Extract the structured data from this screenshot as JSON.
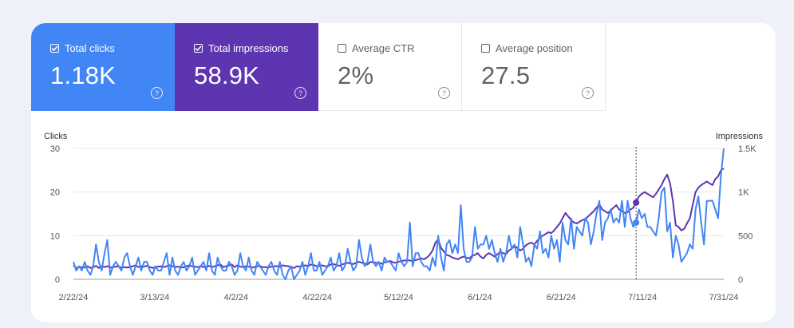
{
  "cards": [
    {
      "label": "Total clicks",
      "value": "1.18K",
      "checked": true
    },
    {
      "label": "Total impressions",
      "value": "58.9K",
      "checked": true
    },
    {
      "label": "Average CTR",
      "value": "2%",
      "checked": false
    },
    {
      "label": "Average position",
      "value": "27.5",
      "checked": false
    }
  ],
  "help_glyph": "?",
  "colors": {
    "clicks": "#4285f4",
    "impressions": "#5e35b1"
  },
  "chart_data": {
    "type": "line",
    "xlabel_ticks": [
      "2/22/24",
      "3/13/24",
      "4/2/24",
      "4/22/24",
      "5/12/24",
      "6/1/24",
      "6/21/24",
      "7/11/24",
      "7/31/24"
    ],
    "y_left": {
      "label": "Clicks",
      "ticks": [
        "0",
        "10",
        "20",
        "30"
      ],
      "range": [
        0,
        30
      ]
    },
    "y_right": {
      "label": "Impressions",
      "ticks": [
        "0",
        "500",
        "1K",
        "1.5K"
      ],
      "range": [
        0,
        1500
      ]
    },
    "grid": true,
    "hover_date": "7/14/24",
    "series": [
      {
        "name": "Total clicks",
        "axis": "left",
        "color": "#4285f4",
        "values": [
          4,
          2,
          3,
          2,
          4,
          2,
          1,
          3,
          8,
          4,
          2,
          6,
          9,
          1,
          3,
          4,
          3,
          2,
          5,
          6,
          3,
          1,
          3,
          5,
          2,
          4,
          4,
          2,
          1,
          3,
          2,
          2,
          4,
          6,
          1,
          5,
          2,
          1,
          3,
          4,
          2,
          3,
          5,
          1,
          2,
          3,
          4,
          2,
          6,
          2,
          1,
          5,
          3,
          2,
          2,
          4,
          3,
          1,
          2,
          6,
          3,
          2,
          5,
          2,
          1,
          4,
          3,
          2,
          1,
          3,
          4,
          2,
          1,
          4,
          1,
          0,
          2,
          3,
          0,
          1,
          2,
          4,
          1,
          3,
          6,
          2,
          2,
          4,
          1,
          2,
          3,
          5,
          2,
          3,
          6,
          2,
          3,
          7,
          4,
          2,
          3,
          9,
          5,
          3,
          4,
          8,
          4,
          3,
          4,
          2,
          5,
          4,
          4,
          3,
          2,
          6,
          4,
          3,
          4,
          13,
          3,
          6,
          6,
          4,
          3,
          3,
          2,
          5,
          3,
          10,
          5,
          2,
          8,
          9,
          6,
          8,
          6,
          17,
          7,
          4,
          4,
          5,
          12,
          7,
          8,
          8,
          10,
          7,
          9,
          6,
          4,
          7,
          4,
          6,
          10,
          7,
          8,
          5,
          12,
          8,
          4,
          5,
          3,
          8,
          7,
          11,
          6,
          7,
          5,
          10,
          7,
          9,
          4,
          13,
          9,
          8,
          14,
          7,
          12,
          11,
          10,
          14,
          13,
          8,
          11,
          15,
          18,
          9,
          13,
          14,
          16,
          13,
          14,
          13,
          18,
          12,
          18,
          14,
          12,
          13,
          16,
          14,
          15,
          12,
          12,
          11,
          10,
          14,
          20,
          21,
          11,
          13,
          5,
          10,
          8,
          4,
          5,
          6,
          8,
          7,
          16,
          19,
          13,
          8,
          18,
          18,
          18,
          16,
          14,
          24,
          30
        ]
      },
      {
        "name": "Total impressions",
        "axis": "right",
        "color": "#5e35b1",
        "values": [
          160,
          130,
          140,
          140,
          135,
          150,
          130,
          140,
          155,
          130,
          150,
          140,
          150,
          135,
          140,
          145,
          150,
          130,
          140,
          135,
          140,
          150,
          160,
          140,
          150,
          145,
          155,
          140,
          130,
          140,
          145,
          150,
          140,
          150,
          160,
          150,
          140,
          145,
          135,
          140,
          150,
          160,
          150,
          145,
          140,
          150,
          140,
          145,
          155,
          140,
          150,
          160,
          170,
          140,
          150,
          160,
          170,
          140,
          160,
          145,
          140,
          150,
          145,
          135,
          140,
          150,
          150,
          140,
          140,
          135,
          145,
          150,
          150,
          145,
          160,
          155,
          150,
          140,
          130,
          150,
          145,
          155,
          160,
          150,
          170,
          165,
          150,
          155,
          160,
          150,
          150,
          170,
          175,
          165,
          155,
          170,
          180,
          190,
          180,
          175,
          190,
          200,
          190,
          180,
          170,
          200,
          195,
          190,
          185,
          180,
          195,
          200,
          210,
          195,
          190,
          200,
          210,
          215,
          220,
          215,
          210,
          220,
          230,
          240,
          230,
          250,
          280,
          330,
          420,
          460,
          360,
          320,
          280,
          270,
          250,
          240,
          230,
          250,
          260,
          250,
          240,
          270,
          280,
          300,
          260,
          240,
          280,
          300,
          280,
          260,
          290,
          310,
          300,
          290,
          330,
          350,
          380,
          360,
          330,
          350,
          390,
          410,
          420,
          400,
          440,
          480,
          500,
          520,
          540,
          530,
          560,
          600,
          640,
          700,
          760,
          720,
          680,
          650,
          640,
          660,
          680,
          690,
          720,
          750,
          780,
          820,
          860,
          800,
          780,
          760,
          790,
          820,
          850,
          800,
          780,
          760,
          770,
          800,
          820,
          880,
          950,
          980,
          1000,
          980,
          960,
          940,
          980,
          1030,
          1080,
          1150,
          1200,
          1100,
          900,
          620,
          600,
          560,
          580,
          640,
          700,
          850,
          1000,
          1050,
          1080,
          1100,
          1120,
          1100,
          1080,
          1150,
          1180,
          1250,
          1270
        ]
      }
    ]
  }
}
